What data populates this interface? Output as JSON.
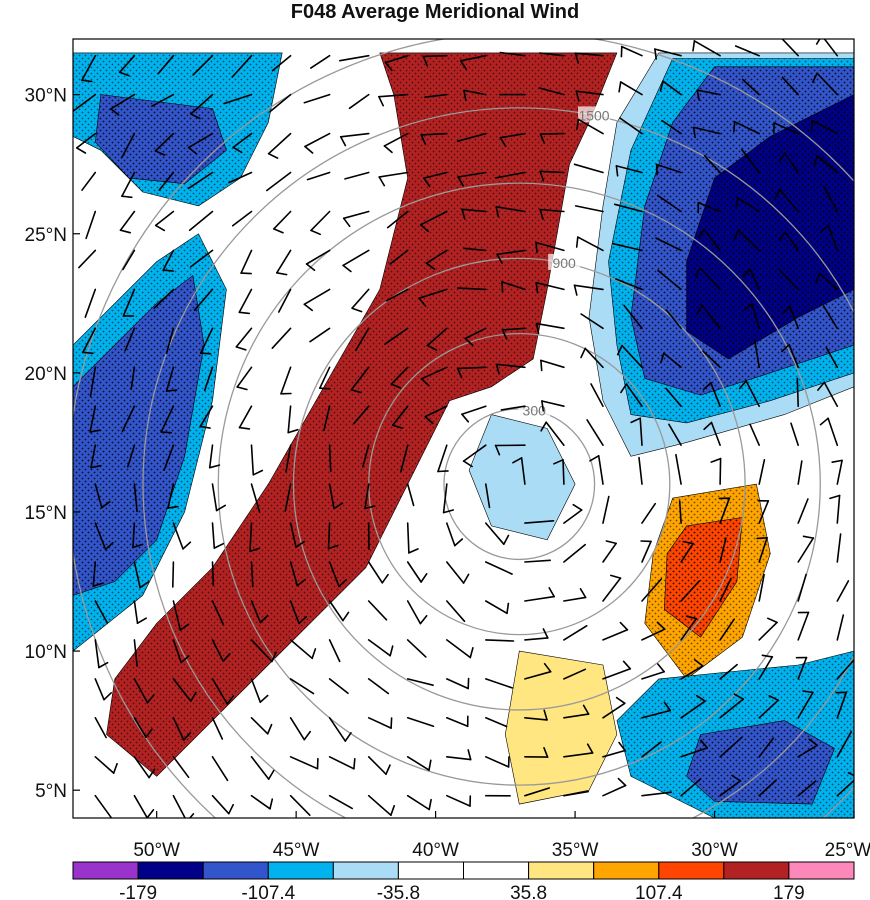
{
  "title": "F048 Average Meridional Wind",
  "map": {
    "lat_range": [
      4,
      32
    ],
    "lon_range": [
      -53,
      -25
    ],
    "lat_ticks": [
      {
        "value": 30,
        "label": "30°N"
      },
      {
        "value": 25,
        "label": "25°N"
      },
      {
        "value": 20,
        "label": "20°N"
      },
      {
        "value": 15,
        "label": "15°N"
      },
      {
        "value": 10,
        "label": "10°N"
      },
      {
        "value": 5,
        "label": "5°N"
      }
    ],
    "lon_ticks": [
      {
        "value": -50,
        "label": "50°W"
      },
      {
        "value": -45,
        "label": "45°W"
      },
      {
        "value": -40,
        "label": "40°W"
      },
      {
        "value": -35,
        "label": "35°W"
      },
      {
        "value": -30,
        "label": "30°W"
      },
      {
        "value": -25,
        "label": "25°W"
      }
    ],
    "range_rings": {
      "center": {
        "lon": -37,
        "lat": 16
      },
      "rings": [
        {
          "radius_km": 300,
          "label": "300"
        },
        {
          "radius_km": 600,
          "label": ""
        },
        {
          "radius_km": 900,
          "label": "900"
        },
        {
          "radius_km": 1200,
          "label": ""
        },
        {
          "radius_km": 1500,
          "label": "1500"
        },
        {
          "radius_km": 1800,
          "label": ""
        }
      ],
      "color": "#999999"
    }
  },
  "colorbar": {
    "colors": [
      "#9933cc",
      "#000088",
      "#3355cc",
      "#00b2ee",
      "#aadcf5",
      "#ffffff",
      "#ffffff",
      "#ffe680",
      "#ffa500",
      "#ff4500",
      "#b22222",
      "#ff88bb"
    ],
    "labels": [
      {
        "after_box": 1,
        "text": "-179"
      },
      {
        "after_box": 3,
        "text": "-107.4"
      },
      {
        "after_box": 5,
        "text": "-35.8"
      },
      {
        "after_box": 7,
        "text": "35.8"
      },
      {
        "after_box": 9,
        "text": "107.4"
      },
      {
        "after_box": 11,
        "text": "179"
      }
    ]
  },
  "fields": {
    "background": "#ffffff",
    "regions": [
      {
        "level": "dark-red",
        "color": "#b22222",
        "poly": [
          [
            -42,
            31.5
          ],
          [
            -33.5,
            31.5
          ],
          [
            -34.5,
            29
          ],
          [
            -35.2,
            27.5
          ],
          [
            -36,
            23
          ],
          [
            -36.5,
            20.5
          ],
          [
            -38,
            19.5
          ],
          [
            -39.5,
            19
          ],
          [
            -40.5,
            17
          ],
          [
            -41.5,
            15
          ],
          [
            -42.5,
            13
          ],
          [
            -44.5,
            11
          ],
          [
            -47.5,
            8
          ],
          [
            -50,
            5.5
          ],
          [
            -51.8,
            7
          ],
          [
            -51.5,
            9
          ],
          [
            -50,
            11
          ],
          [
            -48,
            13
          ],
          [
            -46,
            16
          ],
          [
            -44,
            19.5
          ],
          [
            -42,
            23
          ],
          [
            -41,
            27
          ],
          [
            -41.5,
            30
          ]
        ]
      },
      {
        "level": "light-yellow",
        "color": "#ffe680",
        "poly": [
          [
            -37,
            10
          ],
          [
            -34,
            9.5
          ],
          [
            -33.5,
            7
          ],
          [
            -34.5,
            5
          ],
          [
            -37,
            4.5
          ],
          [
            -37.5,
            7
          ]
        ]
      },
      {
        "level": "orange",
        "color": "#ffa500",
        "poly": [
          [
            -31.5,
            15.5
          ],
          [
            -28.5,
            16
          ],
          [
            -28,
            13.5
          ],
          [
            -29,
            10.5
          ],
          [
            -31,
            9
          ],
          [
            -32.5,
            11
          ],
          [
            -32.2,
            13.5
          ]
        ]
      },
      {
        "level": "red-orange",
        "color": "#ff4500",
        "poly": [
          [
            -31,
            14.5
          ],
          [
            -29,
            14.8
          ],
          [
            -29.2,
            12.5
          ],
          [
            -30.5,
            10.5
          ],
          [
            -31.8,
            11.5
          ],
          [
            -31.7,
            13.5
          ]
        ]
      },
      {
        "level": "light-blue",
        "color": "#aadcf5",
        "poly": [
          [
            -32,
            31.5
          ],
          [
            -25,
            31.5
          ],
          [
            -25,
            19.5
          ],
          [
            -27.5,
            18.5
          ],
          [
            -31,
            17.5
          ],
          [
            -33,
            17
          ],
          [
            -34,
            19
          ],
          [
            -34.5,
            22
          ],
          [
            -34,
            26
          ],
          [
            -33.5,
            29
          ]
        ]
      },
      {
        "level": "medium-blue",
        "color": "#00b2ee",
        "poly": [
          [
            -31.5,
            31.3
          ],
          [
            -25,
            31.3
          ],
          [
            -25,
            20
          ],
          [
            -28,
            19
          ],
          [
            -31,
            18.2
          ],
          [
            -33,
            18.5
          ],
          [
            -33.5,
            21
          ],
          [
            -33.8,
            24
          ],
          [
            -33,
            28
          ]
        ]
      },
      {
        "level": "royal-blue",
        "color": "#3355cc",
        "poly": [
          [
            -30,
            31
          ],
          [
            -25,
            31
          ],
          [
            -25,
            21
          ],
          [
            -28,
            20
          ],
          [
            -30.5,
            19.2
          ],
          [
            -32.5,
            19.8
          ],
          [
            -33,
            22
          ],
          [
            -32.5,
            26
          ],
          [
            -31.5,
            29
          ]
        ]
      },
      {
        "level": "navy",
        "color": "#000088",
        "poly": [
          [
            -28,
            28.5
          ],
          [
            -25,
            30
          ],
          [
            -25,
            23
          ],
          [
            -27,
            22
          ],
          [
            -29.5,
            20.5
          ],
          [
            -31,
            21.5
          ],
          [
            -31,
            24
          ],
          [
            -30,
            27
          ]
        ]
      },
      {
        "level": "medium-blue",
        "color": "#00b2ee",
        "poly": [
          [
            -53,
            21
          ],
          [
            -50,
            24
          ],
          [
            -48.5,
            25
          ],
          [
            -47.5,
            23
          ],
          [
            -48,
            19
          ],
          [
            -49,
            15
          ],
          [
            -50.5,
            12
          ],
          [
            -53,
            10
          ]
        ]
      },
      {
        "level": "royal-blue",
        "color": "#3355cc",
        "poly": [
          [
            -53,
            19.5
          ],
          [
            -50,
            22.5
          ],
          [
            -48.7,
            23.5
          ],
          [
            -48.3,
            21
          ],
          [
            -49,
            17
          ],
          [
            -50,
            14
          ],
          [
            -51.5,
            12.5
          ],
          [
            -53,
            12
          ]
        ]
      },
      {
        "level": "medium-blue",
        "color": "#00b2ee",
        "poly": [
          [
            -53,
            31.5
          ],
          [
            -45.5,
            31.5
          ],
          [
            -46,
            29
          ],
          [
            -47,
            27
          ],
          [
            -48.5,
            26
          ],
          [
            -50.5,
            26.5
          ],
          [
            -52,
            28
          ],
          [
            -53,
            28.5
          ]
        ]
      },
      {
        "level": "royal-blue",
        "color": "#3355cc",
        "poly": [
          [
            -52,
            30
          ],
          [
            -48,
            29.5
          ],
          [
            -47.5,
            28
          ],
          [
            -49,
            26.8
          ],
          [
            -51,
            27
          ],
          [
            -52.2,
            28.3
          ]
        ]
      },
      {
        "level": "light-blue",
        "color": "#aadcf5",
        "poly": [
          [
            -38,
            18.5
          ],
          [
            -36,
            18
          ],
          [
            -35,
            16
          ],
          [
            -36,
            14
          ],
          [
            -38,
            14.5
          ],
          [
            -38.8,
            16.5
          ]
        ]
      },
      {
        "level": "medium-blue",
        "color": "#00b2ee",
        "poly": [
          [
            -32,
            9
          ],
          [
            -27,
            9.5
          ],
          [
            -25,
            10
          ],
          [
            -25,
            4
          ],
          [
            -30,
            4
          ],
          [
            -33,
            5.5
          ],
          [
            -33.5,
            7.5
          ]
        ]
      },
      {
        "level": "royal-blue",
        "color": "#3355cc",
        "poly": [
          [
            -30.5,
            7
          ],
          [
            -27.5,
            7.5
          ],
          [
            -25.7,
            6.5
          ],
          [
            -26.5,
            4.5
          ],
          [
            -30,
            4.6
          ],
          [
            -31,
            5.5
          ]
        ]
      }
    ]
  },
  "wind_barbs": {
    "color": "#000000",
    "spacing_deg": 1.4
  }
}
